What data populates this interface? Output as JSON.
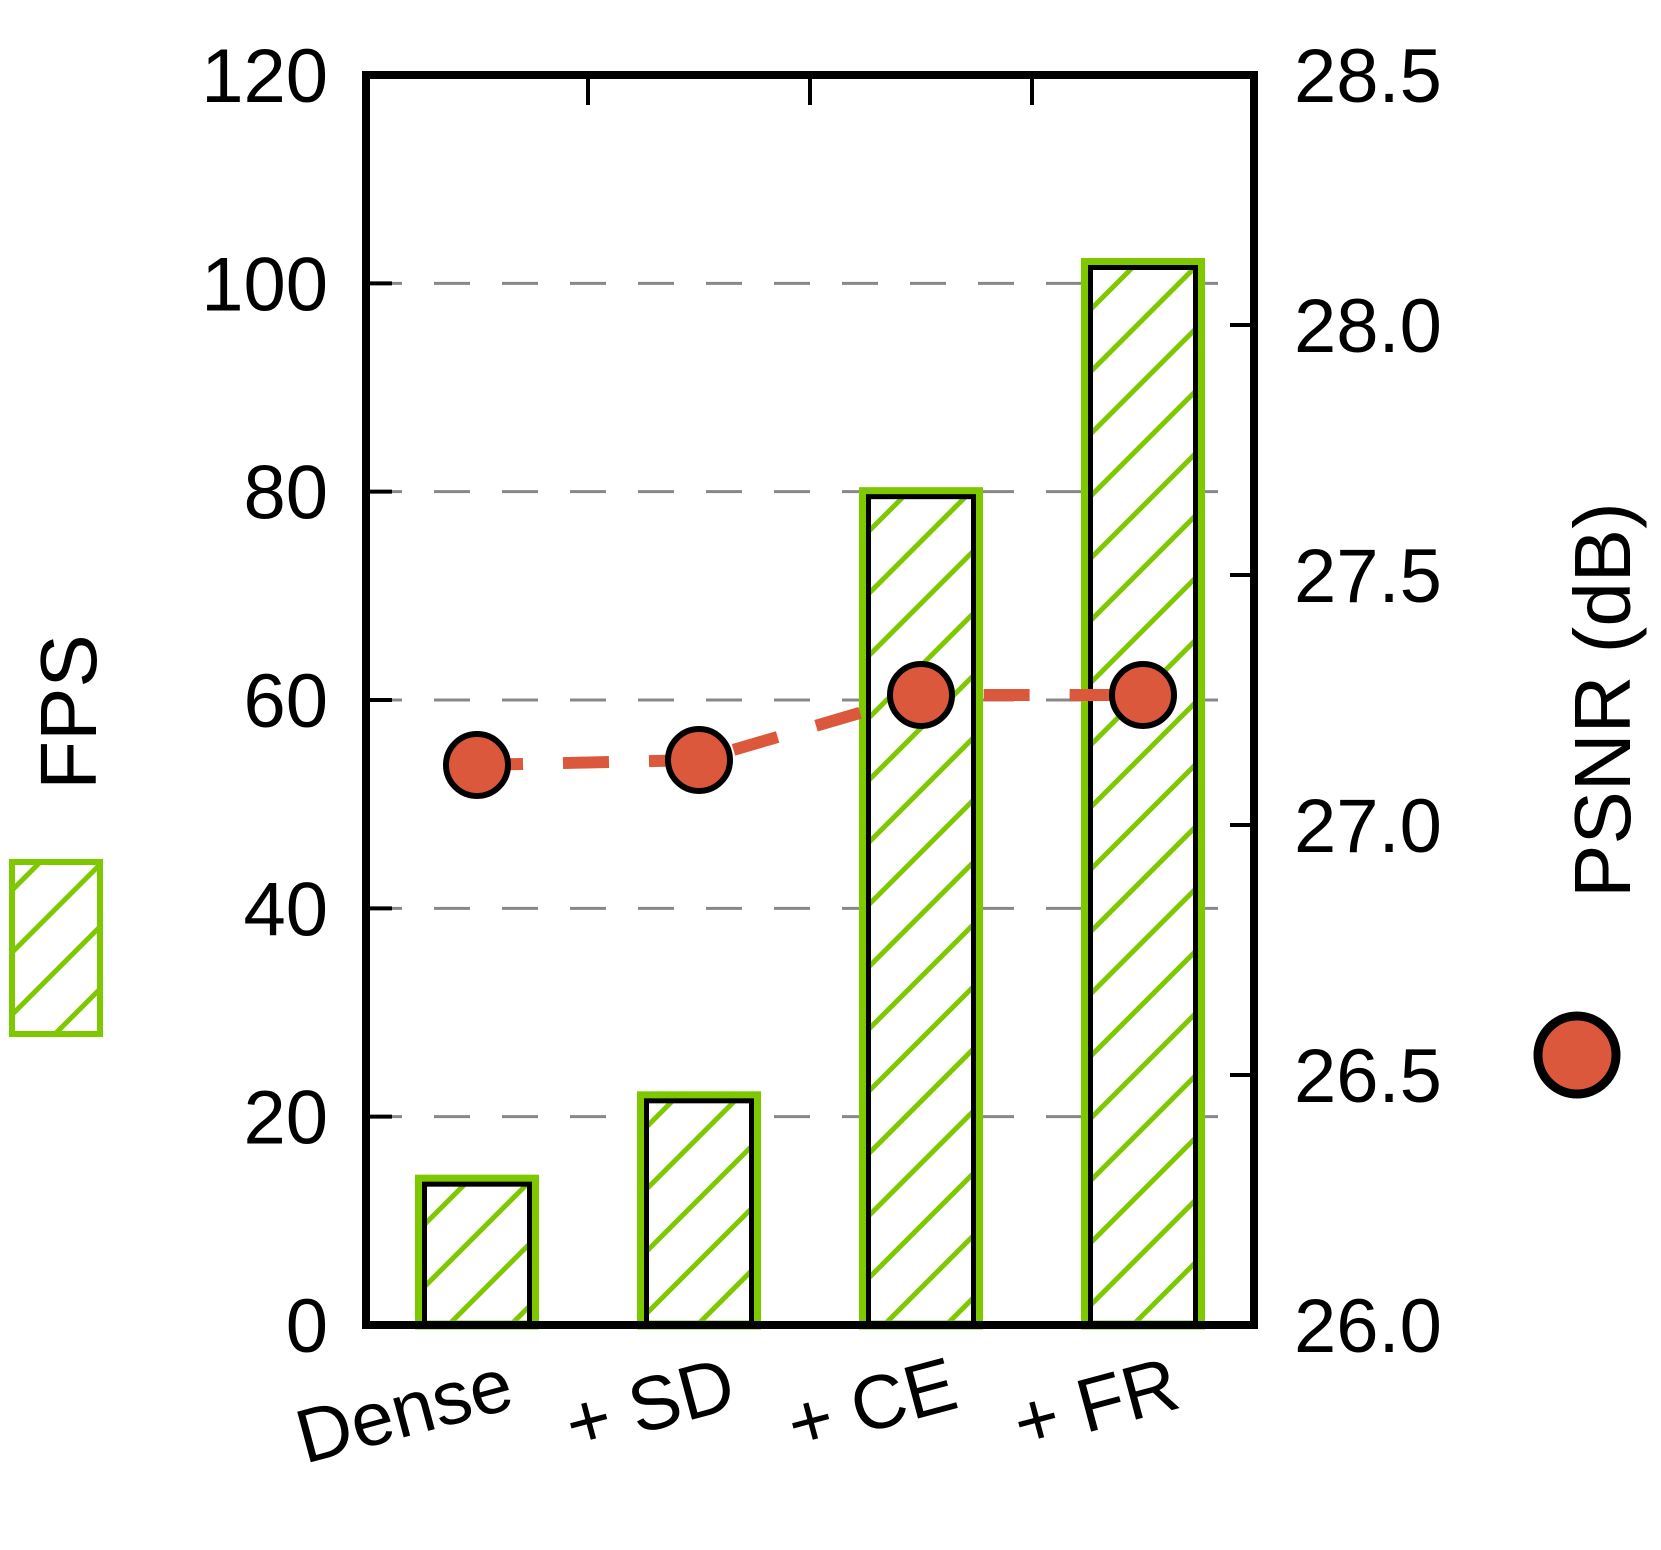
{
  "chart_data": {
    "type": "bar",
    "categories": [
      "Dense",
      "+ SD",
      "+ CE",
      "+ FR"
    ],
    "series": [
      {
        "name": "FPS",
        "type": "bar",
        "axis": "left",
        "values": [
          14,
          22,
          80,
          102
        ]
      },
      {
        "name": "PSNR (dB)",
        "type": "line",
        "axis": "right",
        "values": [
          27.12,
          27.13,
          27.26,
          27.26
        ]
      }
    ],
    "y_left": {
      "label": "FPS",
      "ylim": [
        0,
        120
      ],
      "ticks": [
        "0",
        "20",
        "40",
        "60",
        "80",
        "100",
        "120"
      ]
    },
    "y_right": {
      "label": "PSNR (dB)",
      "ylim": [
        26.0,
        28.5
      ],
      "ticks": [
        "26.0",
        "26.5",
        "27.0",
        "27.5",
        "28.0",
        "28.5"
      ]
    },
    "grid": "horizontal dashed at left-axis ticks",
    "legend": {
      "placement": "outside left and right, rotated",
      "entries": [
        "FPS",
        "PSNR (dB)"
      ]
    },
    "colors": {
      "bar_hatch": "#7ec800",
      "line": "#dc583c",
      "marker_edge": "#000000",
      "grid": "#888888"
    }
  }
}
